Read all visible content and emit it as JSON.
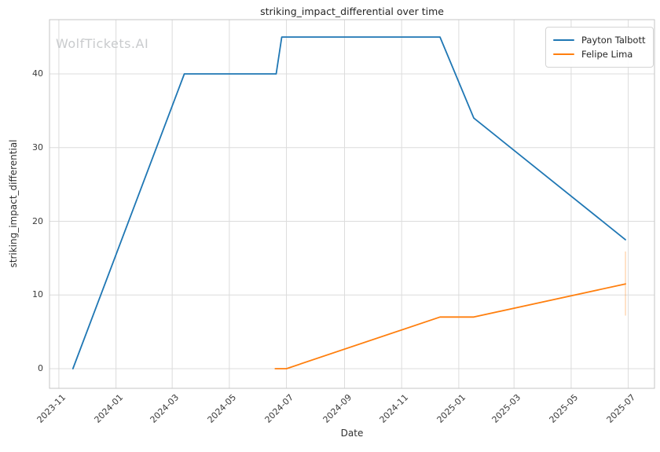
{
  "title": "striking_impact_differential over time",
  "watermark": "WolfTickets.AI",
  "axes": {
    "xlabel": "Date",
    "ylabel": "striking_impact_differential"
  },
  "legend": {
    "items": [
      {
        "label": "Payton Talbott",
        "color": "#1f77b4"
      },
      {
        "label": "Felipe Lima",
        "color": "#ff7f0e"
      }
    ]
  },
  "colors": {
    "grid": "#dcdcdc",
    "spine": "#c6c6c6",
    "text": "#3b3b3b",
    "watermark": "#c9cbcd",
    "series_blue": "#1f77b4",
    "series_orange": "#ff7f0e"
  },
  "chart_data": {
    "type": "line",
    "title": "striking_impact_differential over time",
    "xlabel": "Date",
    "ylabel": "striking_impact_differential",
    "grid": true,
    "legend_position": "upper right",
    "x_ticks": [
      "2023-11",
      "2024-01",
      "2024-03",
      "2024-05",
      "2024-07",
      "2024-09",
      "2024-11",
      "2025-01",
      "2025-03",
      "2025-05",
      "2025-07"
    ],
    "y_ticks": [
      0,
      10,
      20,
      30,
      40
    ],
    "xlim": [
      "2023-10-22",
      "2025-07-29"
    ],
    "ylim": [
      -2.67,
      47.36
    ],
    "series": [
      {
        "name": "Payton Talbott",
        "color": "#1f77b4",
        "points": [
          [
            "2023-11-16",
            0
          ],
          [
            "2024-03-14",
            40
          ],
          [
            "2024-06-20",
            40
          ],
          [
            "2024-06-26",
            45
          ],
          [
            "2024-12-12",
            45
          ],
          [
            "2025-01-17",
            34
          ],
          [
            "2025-06-28",
            17.5
          ]
        ]
      },
      {
        "name": "Felipe Lima",
        "color": "#ff7f0e",
        "points": [
          [
            "2024-06-19",
            0
          ],
          [
            "2024-07-01",
            0
          ],
          [
            "2024-12-12",
            7
          ],
          [
            "2025-01-17",
            7
          ],
          [
            "2025-06-28",
            11.5
          ]
        ],
        "error_bar": {
          "x": "2025-06-28",
          "y_low": 7.2,
          "y_high": 15.9
        }
      }
    ]
  }
}
